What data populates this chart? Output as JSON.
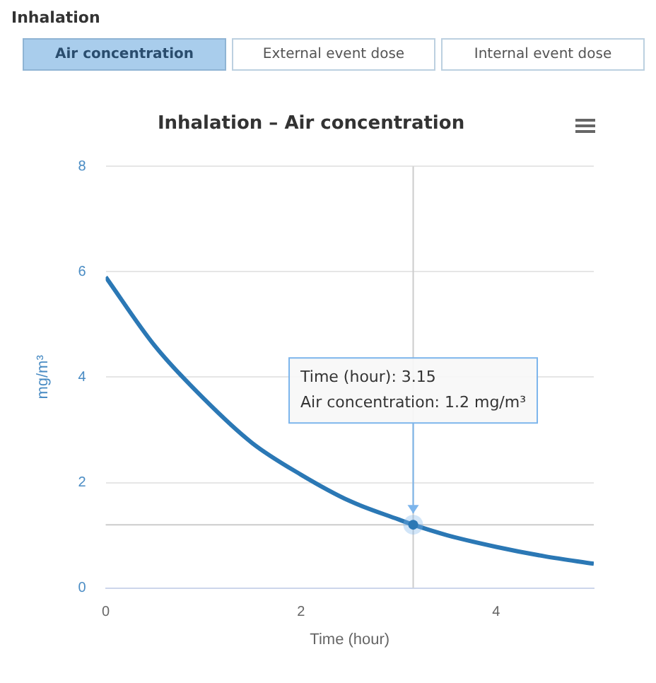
{
  "chart_data": {
    "type": "line",
    "title": "Inhalation – Air concentration",
    "xlabel": "Time (hour)",
    "ylabel": "mg/m³",
    "x": [
      0,
      0.5,
      1,
      1.5,
      2,
      2.5,
      3,
      3.15,
      3.5,
      4,
      4.5,
      5
    ],
    "series": [
      {
        "color": "#2b78b5",
        "values": [
          5.9,
          4.6,
          3.6,
          2.75,
          2.15,
          1.65,
          1.3,
          1.2,
          1.0,
          0.78,
          0.6,
          0.46
        ]
      }
    ],
    "xlim": [
      0,
      5
    ],
    "xticks": [
      0,
      2,
      4
    ],
    "ylim": [
      0,
      8
    ],
    "yticks": [
      0,
      2,
      4,
      6,
      8
    ],
    "grid": "y",
    "legend": false,
    "marker": "none",
    "line_style": "solid",
    "ref_lines": [
      {
        "axis": "x",
        "value": 3.15,
        "color": "#cccccc"
      },
      {
        "axis": "y",
        "value": 1.2,
        "color": "#cccccc"
      }
    ],
    "annotations": [
      "Inhalation",
      "Air concentration",
      "External event dose",
      "Internal event dose",
      {
        "text": "Time (hour): 3.15\nAir concentration: 1.2 mg/m³",
        "x": 3.15,
        "y": 1.2
      }
    ]
  }
}
